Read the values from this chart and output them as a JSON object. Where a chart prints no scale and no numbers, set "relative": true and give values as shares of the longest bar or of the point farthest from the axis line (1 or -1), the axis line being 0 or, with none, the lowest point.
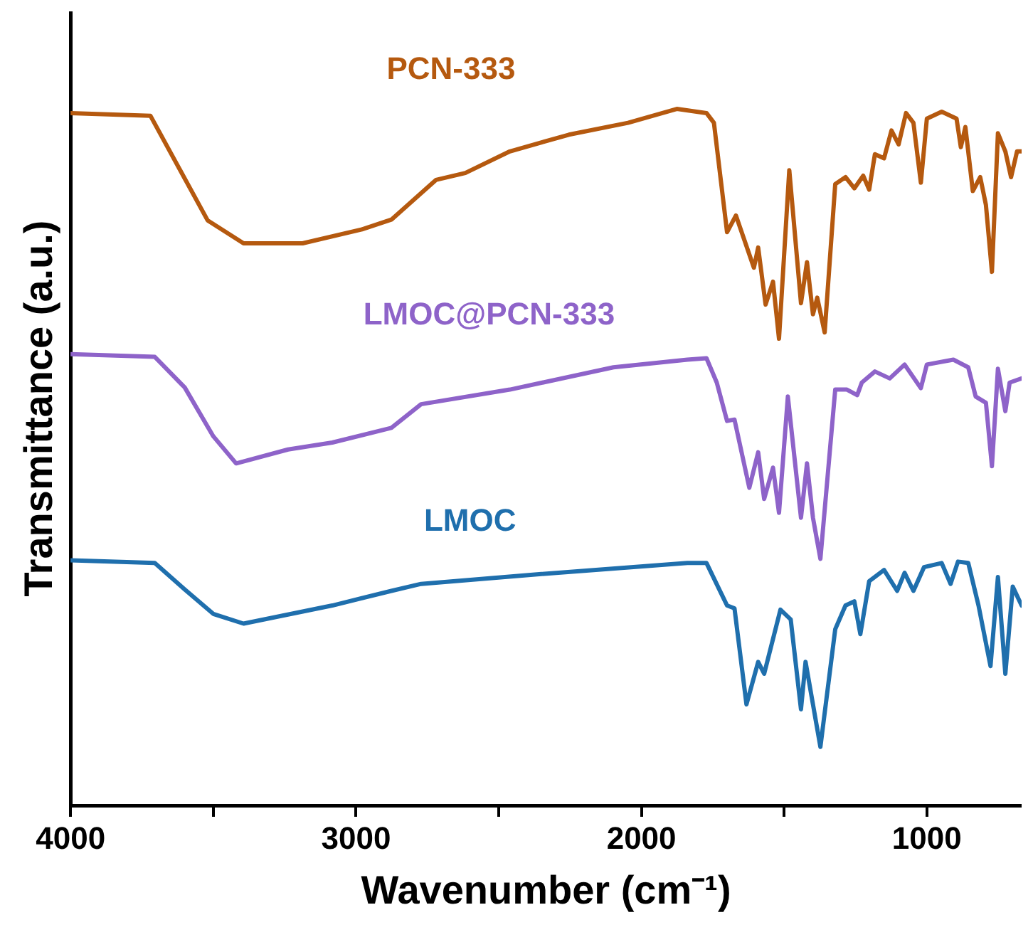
{
  "chart_data": {
    "type": "line",
    "xlabel": "Wavenumber (cm⁻¹)",
    "ylabel": "Transmittance (a.u.)",
    "relative": true,
    "legend": false,
    "grid": false,
    "marker": "none",
    "line_style": "solid",
    "xlim": [
      4000,
      668
    ],
    "xticks": [
      4000,
      {
        "value": 3500,
        "label": null
      },
      3000,
      {
        "value": 2500,
        "label": null
      },
      2000,
      {
        "value": 1500,
        "label": null
      },
      1000
    ],
    "series": [
      {
        "name": "PCN-333",
        "color": "#b5590f",
        "x": [
          4000,
          3720,
          3600,
          3520,
          3394,
          3187,
          2979,
          2876,
          2720,
          2617,
          2461,
          2254,
          2047,
          1876,
          1772,
          1746,
          1700,
          1669,
          1606,
          1591,
          1565,
          1539,
          1518,
          1482,
          1441,
          1420,
          1399,
          1384,
          1358,
          1321,
          1285,
          1254,
          1223,
          1202,
          1182,
          1150,
          1124,
          1099,
          1073,
          1047,
          1021,
          1000,
          948,
          896,
          881,
          865,
          839,
          813,
          793,
          772,
          751,
          725,
          705,
          684,
          668
        ],
        "values": [
          0.994,
          0.99,
          0.9,
          0.84,
          0.807,
          0.807,
          0.827,
          0.841,
          0.898,
          0.908,
          0.939,
          0.963,
          0.98,
          1.0,
          0.994,
          0.98,
          0.823,
          0.847,
          0.772,
          0.801,
          0.719,
          0.752,
          0.67,
          0.912,
          0.721,
          0.78,
          0.705,
          0.729,
          0.679,
          0.892,
          0.902,
          0.886,
          0.904,
          0.884,
          0.935,
          0.929,
          0.969,
          0.949,
          0.994,
          0.98,
          0.894,
          0.986,
          0.996,
          0.986,
          0.945,
          0.974,
          0.882,
          0.902,
          0.862,
          0.766,
          0.965,
          0.939,
          0.902,
          0.939,
          0.939
        ]
      },
      {
        "name": "LMOC@PCN-333",
        "color": "#8e63c9",
        "x": [
          4000,
          3705,
          3600,
          3500,
          3420,
          3238,
          3083,
          2876,
          2772,
          2461,
          2098,
          1839,
          1772,
          1736,
          1700,
          1674,
          1622,
          1591,
          1570,
          1539,
          1518,
          1487,
          1441,
          1420,
          1399,
          1373,
          1321,
          1280,
          1244,
          1228,
          1182,
          1130,
          1078,
          1021,
          1000,
          907,
          855,
          829,
          793,
          772,
          751,
          725,
          710,
          668
        ],
        "values": [
          0.648,
          0.644,
          0.6,
          0.53,
          0.491,
          0.511,
          0.521,
          0.542,
          0.576,
          0.597,
          0.629,
          0.64,
          0.642,
          0.607,
          0.552,
          0.554,
          0.456,
          0.507,
          0.44,
          0.485,
          0.42,
          0.587,
          0.413,
          0.491,
          0.413,
          0.354,
          0.597,
          0.597,
          0.589,
          0.607,
          0.623,
          0.613,
          0.633,
          0.599,
          0.633,
          0.64,
          0.629,
          0.587,
          0.578,
          0.487,
          0.627,
          0.566,
          0.607,
          0.613
        ]
      },
      {
        "name": "LMOC",
        "color": "#1f6fad",
        "x": [
          4000,
          3705,
          3600,
          3500,
          3394,
          3083,
          2876,
          2772,
          2358,
          1839,
          1772,
          1700,
          1674,
          1632,
          1591,
          1570,
          1513,
          1477,
          1441,
          1425,
          1399,
          1373,
          1321,
          1285,
          1254,
          1233,
          1202,
          1150,
          1104,
          1078,
          1047,
          1010,
          948,
          917,
          891,
          855,
          819,
          777,
          751,
          725,
          699,
          668
        ],
        "values": [
          0.352,
          0.348,
          0.31,
          0.275,
          0.261,
          0.287,
          0.308,
          0.318,
          0.332,
          0.348,
          0.348,
          0.287,
          0.283,
          0.145,
          0.206,
          0.189,
          0.281,
          0.267,
          0.138,
          0.206,
          0.145,
          0.084,
          0.253,
          0.287,
          0.293,
          0.246,
          0.322,
          0.338,
          0.308,
          0.334,
          0.308,
          0.342,
          0.348,
          0.318,
          0.35,
          0.348,
          0.287,
          0.2,
          0.328,
          0.189,
          0.314,
          0.287
        ]
      }
    ]
  }
}
